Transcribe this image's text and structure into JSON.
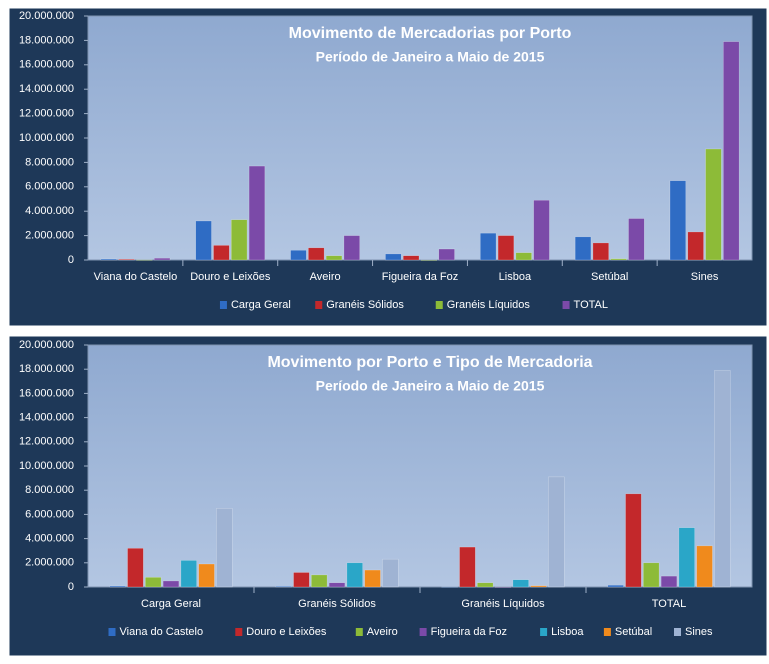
{
  "chart_data": [
    {
      "type": "bar",
      "title": "Movimento de Mercadorias por Porto",
      "subtitle": "Período de Janeiro a Maio de 2015",
      "categories": [
        "Viana do Castelo",
        "Douro e Leixões",
        "Aveiro",
        "Figueira da Foz",
        "Lisboa",
        "Setúbal",
        "Sines"
      ],
      "series": [
        {
          "name": "Carga Geral",
          "color": "#2f6cc4",
          "values": [
            80000,
            3200000,
            800000,
            500000,
            2200000,
            1900000,
            6500000
          ]
        },
        {
          "name": "Granéis Sólidos",
          "color": "#c3282b",
          "values": [
            60000,
            1200000,
            1000000,
            350000,
            2000000,
            1400000,
            2300000
          ]
        },
        {
          "name": "Granéis Líquidos",
          "color": "#8dbb38",
          "values": [
            10000,
            3300000,
            350000,
            0,
            600000,
            100000,
            9100000
          ]
        },
        {
          "name": "TOTAL",
          "color": "#7b4aa8",
          "values": [
            150000,
            7700000,
            2000000,
            900000,
            4900000,
            3400000,
            17900000
          ]
        }
      ],
      "ylim": [
        0,
        20000000
      ],
      "yticks": [
        0,
        {
          "value": 2000000,
          "label": "2.000.000"
        },
        {
          "value": 4000000,
          "label": "4.000.000"
        },
        {
          "value": 6000000,
          "label": "6.000.000"
        },
        {
          "value": 8000000,
          "label": "8.000.000"
        },
        {
          "value": 10000000,
          "label": "10.000.000"
        },
        {
          "value": 12000000,
          "label": "12.000.000"
        },
        {
          "value": 14000000,
          "label": "14.000.000"
        },
        {
          "value": 16000000,
          "label": "16.000.000"
        },
        {
          "value": 18000000,
          "label": "18.000.000"
        },
        {
          "value": 20000000,
          "label": "20.000.000"
        }
      ],
      "legend": "bottom"
    },
    {
      "type": "bar",
      "title": "Movimento por Porto e Tipo de Mercadoria",
      "subtitle": "Período de Janeiro a Maio de 2015",
      "categories": [
        "Carga Geral",
        "Granéis Sólidos",
        "Granéis Líquidos",
        "TOTAL"
      ],
      "series": [
        {
          "name": "Viana do Castelo",
          "color": "#2f6cc4",
          "values": [
            80000,
            60000,
            10000,
            150000
          ]
        },
        {
          "name": "Douro e Leixões",
          "color": "#c3282b",
          "values": [
            3200000,
            1200000,
            3300000,
            7700000
          ]
        },
        {
          "name": "Aveiro",
          "color": "#8dbb38",
          "values": [
            800000,
            1000000,
            350000,
            2000000
          ]
        },
        {
          "name": "Figueira da Foz",
          "color": "#7b4aa8",
          "values": [
            500000,
            350000,
            0,
            900000
          ]
        },
        {
          "name": "Lisboa",
          "color": "#2aa6c8",
          "values": [
            2200000,
            2000000,
            600000,
            4900000
          ]
        },
        {
          "name": "Setúbal",
          "color": "#f08a1c",
          "values": [
            1900000,
            1400000,
            100000,
            3400000
          ]
        },
        {
          "name": "Sines",
          "color": "#9fb3d3",
          "values": [
            6500000,
            2300000,
            9100000,
            17900000
          ]
        }
      ],
      "ylim": [
        0,
        20000000
      ],
      "yticks": [
        0,
        {
          "value": 2000000,
          "label": "2.000.000"
        },
        {
          "value": 4000000,
          "label": "4.000.000"
        },
        {
          "value": 6000000,
          "label": "6.000.000"
        },
        {
          "value": 8000000,
          "label": "8.000.000"
        },
        {
          "value": 10000000,
          "label": "10.000.000"
        },
        {
          "value": 12000000,
          "label": "12.000.000"
        },
        {
          "value": 14000000,
          "label": "14.000.000"
        },
        {
          "value": 16000000,
          "label": "16.000.000"
        },
        {
          "value": 18000000,
          "label": "18.000.000"
        },
        {
          "value": 20000000,
          "label": "20.000.000"
        }
      ],
      "legend": "bottom"
    }
  ]
}
